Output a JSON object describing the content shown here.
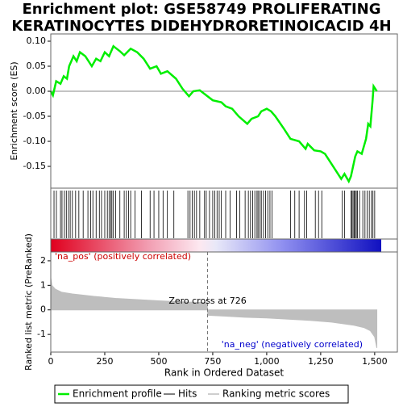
{
  "chart_data": [
    {
      "type": "line",
      "title": "Enrichment plot: GSE58749 PROLIFERATING KERATINOCYTES DIDEHYDRORETINOICACID 4H",
      "ylabel": "Enrichment score (ES)",
      "x": [
        0,
        10,
        25,
        45,
        60,
        75,
        85,
        105,
        120,
        135,
        160,
        190,
        210,
        230,
        250,
        270,
        290,
        320,
        340,
        370,
        400,
        430,
        460,
        490,
        510,
        540,
        580,
        610,
        640,
        660,
        690,
        720,
        750,
        790,
        810,
        840,
        870,
        910,
        930,
        960,
        975,
        1000,
        1020,
        1040,
        1080,
        1110,
        1150,
        1180,
        1190,
        1220,
        1250,
        1270,
        1300,
        1330,
        1345,
        1360,
        1380,
        1390,
        1410,
        1420,
        1440,
        1460,
        1470,
        1480,
        1490,
        1495,
        1510
      ],
      "series": [
        {
          "name": "Enrichment profile",
          "color": "#00ee00",
          "values": [
            0,
            -0.008,
            0.02,
            0.015,
            0.03,
            0.025,
            0.05,
            0.07,
            0.06,
            0.078,
            0.07,
            0.05,
            0.065,
            0.06,
            0.078,
            0.07,
            0.09,
            0.08,
            0.072,
            0.085,
            0.078,
            0.065,
            0.045,
            0.05,
            0.035,
            0.04,
            0.025,
            0.005,
            -0.01,
            0,
            0.002,
            -0.008,
            -0.018,
            -0.022,
            -0.03,
            -0.035,
            -0.05,
            -0.065,
            -0.055,
            -0.05,
            -0.04,
            -0.035,
            -0.04,
            -0.05,
            -0.075,
            -0.095,
            -0.1,
            -0.115,
            -0.105,
            -0.118,
            -0.12,
            -0.125,
            -0.145,
            -0.165,
            -0.175,
            -0.165,
            -0.18,
            -0.17,
            -0.13,
            -0.12,
            -0.125,
            -0.095,
            -0.065,
            -0.07,
            -0.02,
            0.01,
            0
          ]
        }
      ],
      "hits": {
        "name": "Hits",
        "color": "#000000",
        "x": [
          15,
          26,
          45,
          52,
          63,
          72,
          82,
          90,
          100,
          115,
          130,
          150,
          172,
          185,
          195,
          210,
          225,
          235,
          250,
          262,
          270,
          278,
          283,
          290,
          300,
          320,
          340,
          350,
          360,
          370,
          390,
          420,
          460,
          478,
          500,
          520,
          540,
          570,
          635,
          645,
          655,
          665,
          675,
          690,
          712,
          720,
          735,
          750,
          760,
          770,
          780,
          790,
          810,
          830,
          860,
          875,
          900,
          915,
          925,
          935,
          945,
          955,
          960,
          968,
          975,
          985,
          995,
          1005,
          1015,
          1025,
          1110,
          1130,
          1150,
          1175,
          1185,
          1225,
          1240,
          1255,
          1350,
          1360,
          1390,
          1395,
          1400,
          1405,
          1410,
          1415,
          1420,
          1430,
          1445,
          1455,
          1465,
          1475,
          1485,
          1492,
          1500
        ]
      },
      "xlim": [
        0,
        1605
      ],
      "ylim": [
        -0.1935,
        0.1145
      ],
      "yticks": [
        {
          "value": 0.1,
          "label": "0.10"
        },
        0.05,
        {
          "value": 0,
          "label": "0.00"
        },
        -0.05,
        {
          "value": -0.1,
          "label": "-0.10"
        },
        -0.15
      ]
    },
    {
      "type": "area",
      "ylabel": "Ranked list metric (PreRanked)",
      "xlabel": "Rank in Ordered Dataset",
      "x": [
        0,
        5,
        20,
        50,
        100,
        200,
        300,
        400,
        500,
        600,
        700,
        725,
        726,
        800,
        900,
        1000,
        1100,
        1200,
        1300,
        1400,
        1450,
        1480,
        1500,
        1510
      ],
      "series": [
        {
          "name": "Ranking metric scores",
          "color": "#bebebe",
          "values": [
            1.3,
            1,
            0.85,
            0.72,
            0.65,
            0.55,
            0.47,
            0.42,
            0.37,
            0.33,
            0.3,
            0.29,
            -0.22,
            -0.25,
            -0.3,
            -0.33,
            -0.38,
            -0.43,
            -0.5,
            -0.62,
            -0.72,
            -0.85,
            -1.1,
            -1.55
          ]
        }
      ],
      "xlim": [
        0,
        1605
      ],
      "ylim": [
        -1.72,
        2.36
      ],
      "xticks": [
        0,
        250,
        500,
        750,
        {
          "value": 1000,
          "label": "1,000"
        },
        {
          "value": 1250,
          "label": "1,250"
        },
        {
          "value": 1500,
          "label": "1,500"
        }
      ],
      "yticks": [
        2,
        1,
        0,
        -1
      ],
      "annotations": [
        {
          "text": "Zero cross at 726",
          "x": 726
        }
      ],
      "pos_label": "'na_pos' (positively correlated)",
      "neg_label": "'na_neg' (negatively correlated)"
    }
  ]
}
